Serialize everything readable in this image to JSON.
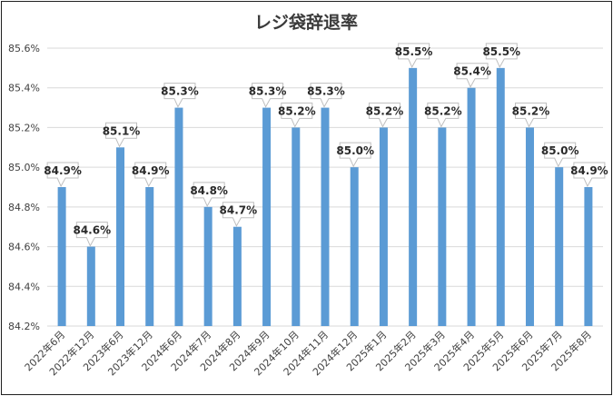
{
  "chart_data": {
    "type": "bar",
    "title": "レジ袋辞退率",
    "xlabel": "",
    "ylabel": "",
    "categories": [
      "2022年6月",
      "2022年12月",
      "2023年6月",
      "2023年12月",
      "2024年6月",
      "2024年7月",
      "2024年8月",
      "2024年9月",
      "2024年10月",
      "2024年11月",
      "2024年12月",
      "2025年1月",
      "2025年2月",
      "2025年3月",
      "2025年4月",
      "2025年5月",
      "2025年6月",
      "2025年7月",
      "2025年8月"
    ],
    "values": [
      84.9,
      84.6,
      85.1,
      84.9,
      85.3,
      84.8,
      84.7,
      85.3,
      85.2,
      85.3,
      85.0,
      85.2,
      85.5,
      85.2,
      85.4,
      85.5,
      85.2,
      85.0,
      84.9
    ],
    "data_labels": [
      "84.9%",
      "84.6%",
      "85.1%",
      "84.9%",
      "85.3%",
      "84.8%",
      "84.7%",
      "85.3%",
      "85.2%",
      "85.3%",
      "85.0%",
      "85.2%",
      "85.5%",
      "85.2%",
      "85.4%",
      "85.5%",
      "85.2%",
      "85.0%",
      "84.9%"
    ],
    "ylim": [
      84.2,
      85.6
    ],
    "yticks": [
      84.2,
      84.4,
      84.6,
      84.8,
      85.0,
      85.2,
      85.4,
      85.6
    ],
    "ytick_labels": [
      "84.2%",
      "84.4%",
      "84.6%",
      "84.8%",
      "85.0%",
      "85.2%",
      "85.4%",
      "85.6%"
    ],
    "grid": true,
    "bar_color": "#5b9bd5",
    "grid_color": "#d9d9d9"
  }
}
